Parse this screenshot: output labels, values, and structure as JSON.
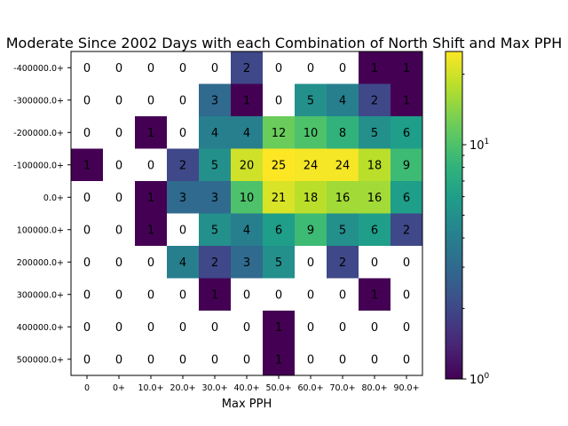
{
  "chart_data": {
    "type": "heatmap",
    "title": "Moderate Since 2002 Days with each Combination of North Shift and Max PPH",
    "xlabel": "Max PPH",
    "ylabel": "",
    "x_categories": [
      "0",
      "0+",
      "10.0+",
      "20.0+",
      "30.0+",
      "40.0+",
      "50.0+",
      "60.0+",
      "70.0+",
      "80.0+",
      "90.0+"
    ],
    "y_categories": [
      "-400000.0+",
      "-300000.0+",
      "-200000.0+",
      "-100000.0+",
      "0.0+",
      "100000.0+",
      "200000.0+",
      "300000.0+",
      "400000.0+",
      "500000.0+"
    ],
    "values": [
      [
        0,
        0,
        0,
        0,
        0,
        2,
        0,
        0,
        0,
        1,
        1
      ],
      [
        0,
        0,
        0,
        0,
        3,
        1,
        0,
        5,
        4,
        2,
        1
      ],
      [
        0,
        0,
        1,
        0,
        4,
        4,
        12,
        10,
        8,
        5,
        6
      ],
      [
        1,
        0,
        0,
        2,
        5,
        20,
        25,
        24,
        24,
        18,
        9
      ],
      [
        0,
        0,
        1,
        3,
        3,
        10,
        21,
        18,
        16,
        16,
        6
      ],
      [
        0,
        0,
        1,
        0,
        5,
        4,
        6,
        9,
        5,
        6,
        2
      ],
      [
        0,
        0,
        0,
        4,
        2,
        3,
        5,
        0,
        2,
        0,
        0
      ],
      [
        0,
        0,
        0,
        0,
        1,
        0,
        0,
        0,
        0,
        1,
        0
      ],
      [
        0,
        0,
        0,
        0,
        0,
        0,
        1,
        0,
        0,
        0,
        0
      ],
      [
        0,
        0,
        0,
        0,
        0,
        0,
        1,
        0,
        0,
        0,
        0
      ]
    ],
    "color_scale": "log",
    "colormap": "viridis",
    "zero_color": "#ffffff",
    "color_range": [
      1,
      25
    ],
    "colorbar_ticks": [
      {
        "value": 1,
        "base": "10",
        "exp": "0"
      },
      {
        "value": 10,
        "base": "10",
        "exp": "1"
      }
    ],
    "grid": false,
    "legend": "colorbar-right"
  }
}
